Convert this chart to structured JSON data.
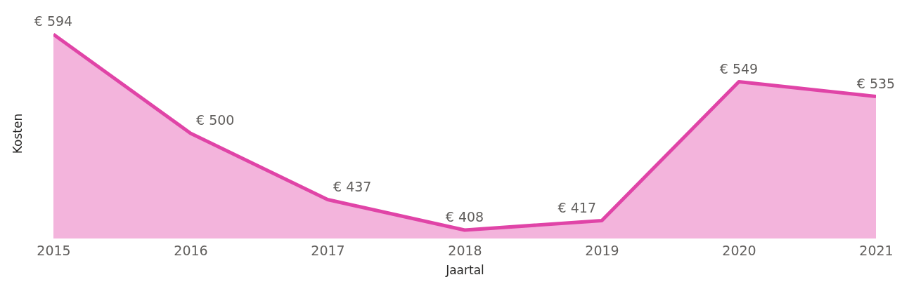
{
  "chart_data": {
    "type": "area",
    "xlabel": "Jaartal",
    "ylabel": "Kosten",
    "categories": [
      "2015",
      "2016",
      "2017",
      "2018",
      "2019",
      "2020",
      "2021"
    ],
    "series": [
      {
        "color": "#e044a7",
        "values": [
          594,
          500,
          437,
          408,
          417,
          549,
          535
        ],
        "value_labels": [
          "€ 594",
          "€ 500",
          "€ 437",
          "€ 408",
          "€ 417",
          "€ 549",
          "€ 535"
        ]
      }
    ],
    "tick_labels": "x"
  }
}
